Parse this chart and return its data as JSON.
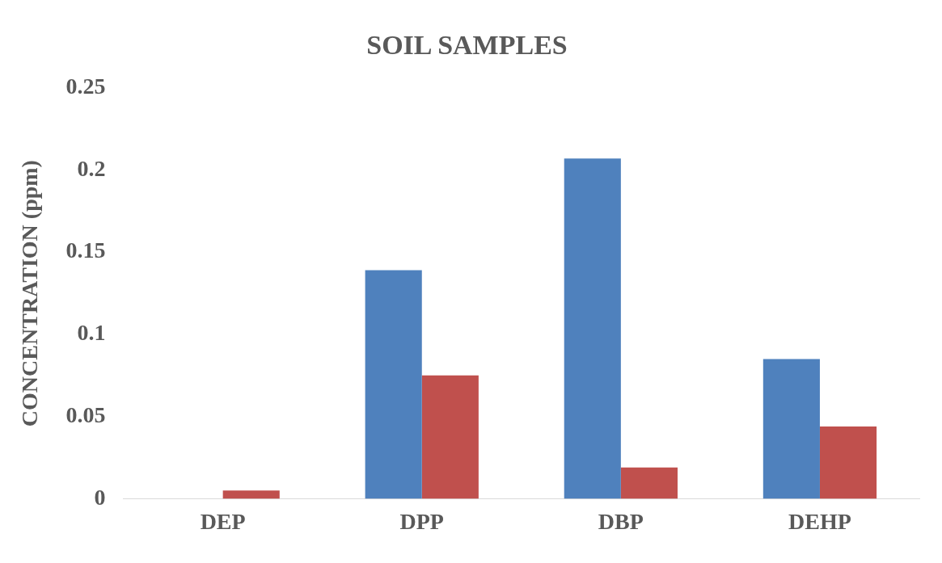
{
  "chart_data": {
    "type": "bar",
    "title": "SOIL SAMPLES",
    "ylabel": "CONCENTRATION (ppm)",
    "categories": [
      "DEP",
      "DPP",
      "DBP",
      "DEHP"
    ],
    "series": [
      {
        "color": "#4f81bd",
        "values": [
          0,
          0.139,
          0.207,
          0.085
        ]
      },
      {
        "color": "#c0504d",
        "values": [
          0.005,
          0.075,
          0.019,
          0.044
        ]
      }
    ],
    "ylim": [
      0,
      0.25
    ],
    "yticks": [
      0,
      0.05,
      0.1,
      0.15,
      0.2,
      0.25
    ],
    "grid": false,
    "legend": false
  }
}
